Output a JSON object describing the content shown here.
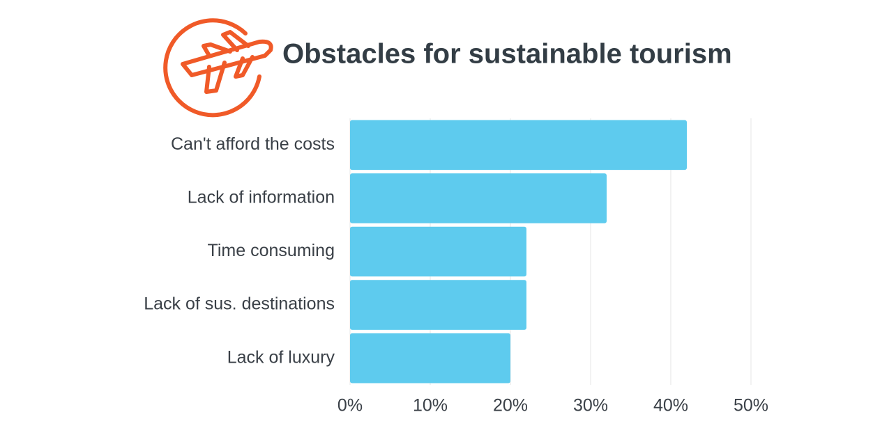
{
  "chart_data": {
    "type": "bar",
    "title": "Obstacles for sustainable tourism",
    "categories": [
      "Can't afford the costs",
      "Lack of information",
      "Time consuming",
      "Lack of sus. destinations",
      "Lack of luxury"
    ],
    "values": [
      42,
      32,
      22,
      22,
      20
    ],
    "color": "#5ecbee",
    "xlim": [
      0,
      50
    ],
    "xticks": [
      {
        "value": 0,
        "label": "0%"
      },
      {
        "value": 10,
        "label": "10%"
      },
      {
        "value": 20,
        "label": "20%"
      },
      {
        "value": 30,
        "label": "30%"
      },
      {
        "value": 40,
        "label": "40%"
      },
      {
        "value": 50,
        "label": "50%"
      }
    ],
    "grid": true
  }
}
